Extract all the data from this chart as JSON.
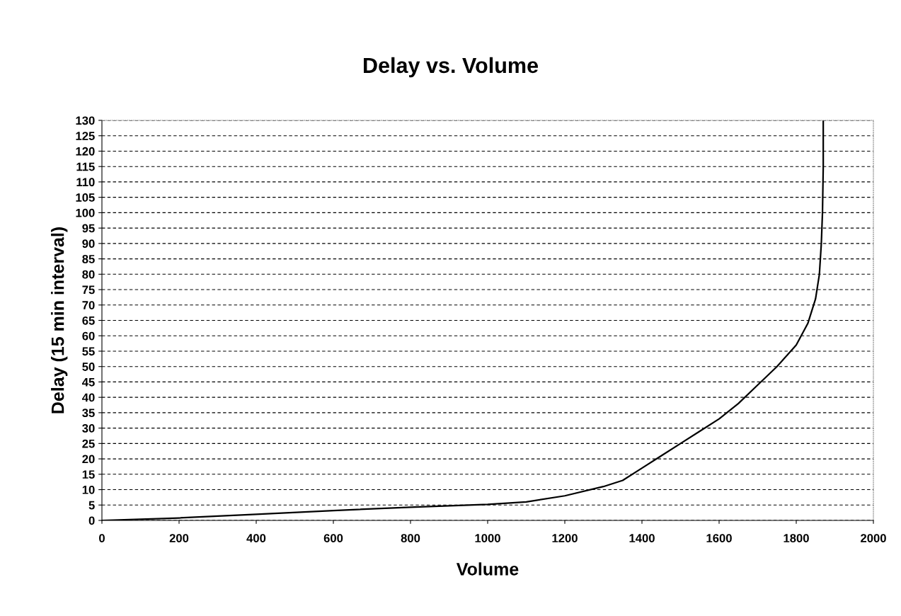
{
  "chart_data": {
    "type": "line",
    "title": "Delay vs. Volume",
    "xlabel": "Volume",
    "ylabel": "Delay (15 min interval)",
    "x": [
      0,
      200,
      400,
      600,
      800,
      1000,
      1100,
      1200,
      1300,
      1350,
      1400,
      1450,
      1500,
      1550,
      1600,
      1650,
      1700,
      1750,
      1800,
      1830,
      1850,
      1860,
      1865,
      1868,
      1870,
      1870
    ],
    "series": [
      {
        "color": "#000000",
        "values": [
          0,
          0.8,
          2,
          3.2,
          4.3,
          5.2,
          6,
          8,
          11,
          13,
          17,
          21,
          25,
          29,
          33,
          38,
          44,
          50,
          57,
          64,
          72,
          80,
          90,
          100,
          115,
          130
        ]
      }
    ],
    "xlim": [
      0,
      2000
    ],
    "xticks": [
      0,
      200,
      400,
      600,
      800,
      1000,
      1200,
      1400,
      1600,
      1800,
      2000
    ],
    "ylim": [
      0,
      130
    ],
    "yticks": [
      0,
      5,
      10,
      15,
      20,
      25,
      30,
      35,
      40,
      45,
      50,
      55,
      60,
      65,
      70,
      75,
      80,
      85,
      90,
      95,
      100,
      105,
      110,
      115,
      120,
      125,
      130
    ],
    "grid": "y",
    "marker": "none",
    "line_style": "solid"
  }
}
